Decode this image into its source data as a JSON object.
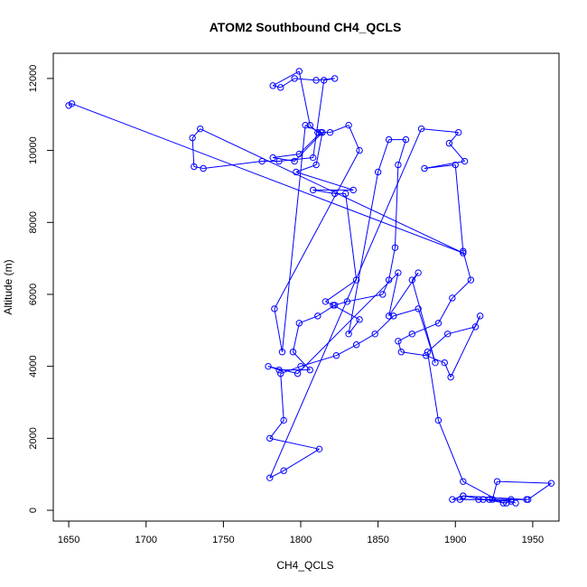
{
  "chart_data": {
    "type": "line",
    "title": "ATOM2 Southbound CH4_QCLS",
    "xlabel": "CH4_QCLS",
    "ylabel": "Altitude (m)",
    "xlim": [
      1640,
      1967
    ],
    "ylim": [
      -300,
      12700
    ],
    "xticks": [
      1650,
      1700,
      1750,
      1800,
      1850,
      1900,
      1950
    ],
    "yticks": [
      0,
      2000,
      4000,
      6000,
      8000,
      10000,
      12000
    ],
    "series_color": "#0000ff",
    "grid": false,
    "legend": false,
    "x": [
      1650,
      1652,
      1905,
      1735,
      1730,
      1731,
      1737,
      1775,
      1786,
      1808,
      1815,
      1822,
      1810,
      1796,
      1787,
      1782,
      1799,
      1806,
      1811,
      1819,
      1831,
      1838,
      1783,
      1788,
      1803,
      1813,
      1799,
      1782,
      1796,
      1814,
      1810,
      1797,
      1834,
      1808,
      1822,
      1829,
      1836,
      1816,
      1821,
      1838,
      1831,
      1850,
      1857,
      1868,
      1863,
      1861,
      1857,
      1853,
      1830,
      1822,
      1811,
      1799,
      1795,
      1806,
      1786,
      1779,
      1798,
      1863,
      1857,
      1876,
      1872,
      1887,
      1876,
      1860,
      1848,
      1836,
      1823,
      1800,
      1787,
      1789,
      1780,
      1812,
      1789,
      1780,
      1878,
      1902,
      1896,
      1906,
      1880,
      1900,
      1905,
      1910,
      1898,
      1889,
      1872,
      1863,
      1865,
      1881,
      1893,
      1897,
      1916,
      1913,
      1895,
      1882,
      1889,
      1905,
      1931,
      1922,
      1903,
      1905,
      1933,
      1936,
      1915,
      1946,
      1905,
      1898,
      1947,
      1962,
      1927,
      1924,
      1918,
      1936,
      1939
    ],
    "y": [
      11250,
      11300,
      7150,
      10600,
      10350,
      9550,
      9500,
      9700,
      9700,
      9800,
      11950,
      12000,
      11950,
      12000,
      11750,
      11800,
      12200,
      10700,
      10500,
      10500,
      10700,
      10000,
      5600,
      4400,
      10700,
      10500,
      9900,
      9800,
      9700,
      10500,
      9600,
      9400,
      8900,
      8900,
      8800,
      8800,
      6400,
      5800,
      5700,
      5300,
      4900,
      9400,
      10300,
      10300,
      9600,
      7300,
      6400,
      6000,
      5800,
      5700,
      5400,
      5200,
      4400,
      3900,
      3900,
      4000,
      3800,
      6600,
      5400,
      6600,
      6400,
      4100,
      5600,
      5400,
      4900,
      4600,
      4300,
      4000,
      3800,
      2500,
      2000,
      1700,
      1100,
      900,
      10600,
      10500,
      10200,
      9700,
      9500,
      9600,
      7200,
      6400,
      5900,
      5200,
      4900,
      4700,
      4400,
      4300,
      4100,
      3700,
      5400,
      5100,
      4900,
      4400,
      2500,
      800,
      200,
      300,
      300,
      400,
      200,
      300,
      300,
      300,
      400,
      300,
      300,
      750,
      800,
      300,
      300,
      250,
      200
    ]
  }
}
